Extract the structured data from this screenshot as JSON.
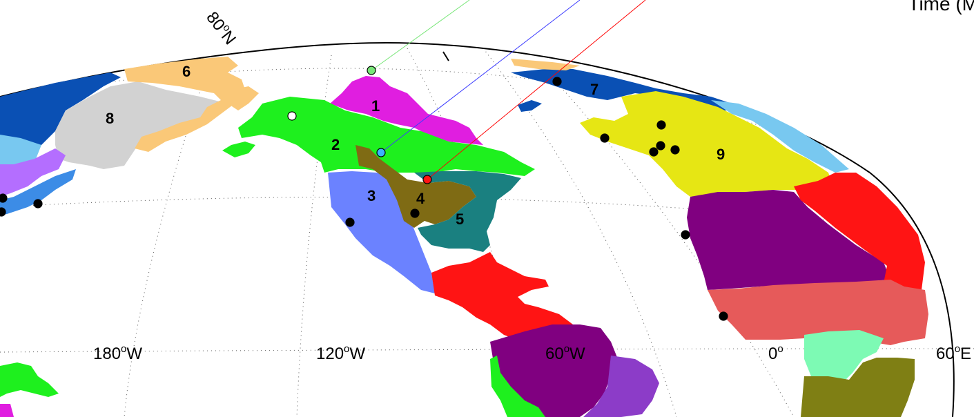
{
  "corner_text": "Time (M",
  "lat_label": "80°N",
  "lat_label_parts": {
    "num": "80",
    "sup": "o",
    "hem": "N"
  },
  "lon_labels": [
    {
      "num": "180",
      "sup": "o",
      "hem": "W"
    },
    {
      "num": "120",
      "sup": "o",
      "hem": "W"
    },
    {
      "num": "60",
      "sup": "o",
      "hem": "W"
    },
    {
      "num": "0",
      "sup": "o",
      "hem": ""
    },
    {
      "num": "60",
      "sup": "o",
      "hem": "E"
    }
  ],
  "region_labels": [
    "1",
    "2",
    "3",
    "4",
    "5",
    "6",
    "7",
    "8",
    "9"
  ],
  "colors": {
    "r1_magenta": "#e01ee0",
    "r2_green": "#1ef01e",
    "r3_blue": "#6b82ff",
    "r4_olive": "#7f6b14",
    "r5_teal": "#1a8080",
    "r6_orange": "#fac878",
    "r7_navy": "#0a50b4",
    "r8_gray": "#d2d2d2",
    "r9_yellow": "#e6e614",
    "purple": "#800080",
    "light_purple": "#b46eff",
    "salmon": "#e65a5a",
    "red": "#ff1414",
    "sky": "#78c8f0",
    "mint": "#7dfab4",
    "olive_dark": "#7f7f14",
    "violet": "#8c3cc8",
    "line_green": "#78e678",
    "line_blue": "#3c3cff",
    "line_red": "#ff0000"
  },
  "stations_markers": [
    "green-circle",
    "blue-circle",
    "red-circle",
    "white-circle"
  ]
}
